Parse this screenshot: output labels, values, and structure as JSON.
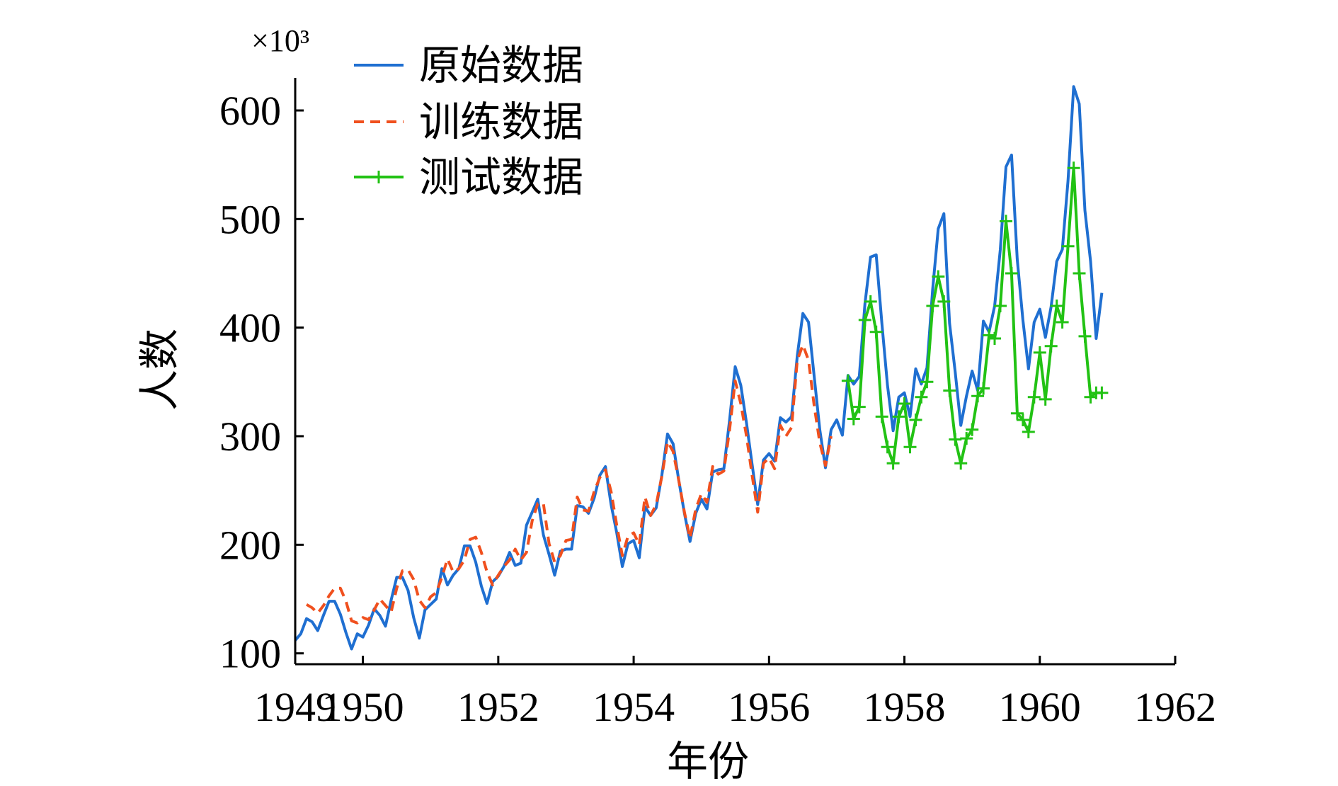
{
  "chart_data": {
    "type": "line",
    "title": "",
    "xlabel": "年份",
    "ylabel": "人数",
    "y_scale_label": "×10³",
    "xlim": [
      1949,
      1962
    ],
    "ylim": [
      90,
      630
    ],
    "xticks": [
      1949,
      1950,
      1952,
      1954,
      1956,
      1958,
      1960,
      1962
    ],
    "xtick_labels": [
      "1949",
      "1950",
      "1952",
      "1954",
      "1956",
      "1958",
      "1960",
      "1962"
    ],
    "yticks": [
      100,
      200,
      300,
      400,
      500,
      600
    ],
    "ytick_labels": [
      "100",
      "200",
      "300",
      "400",
      "500",
      "600"
    ],
    "grid": false,
    "legend_position": "top-left",
    "series": [
      {
        "name": "原始数据",
        "color": "#1f6fd1",
        "style": "solid",
        "marker": "none",
        "x": [
          1949.0,
          1949.083,
          1949.167,
          1949.25,
          1949.333,
          1949.417,
          1949.5,
          1949.583,
          1949.667,
          1949.75,
          1949.833,
          1949.917,
          1950.0,
          1950.083,
          1950.167,
          1950.25,
          1950.333,
          1950.417,
          1950.5,
          1950.583,
          1950.667,
          1950.75,
          1950.833,
          1950.917,
          1951.0,
          1951.083,
          1951.167,
          1951.25,
          1951.333,
          1951.417,
          1951.5,
          1951.583,
          1951.667,
          1951.75,
          1951.833,
          1951.917,
          1952.0,
          1952.083,
          1952.167,
          1952.25,
          1952.333,
          1952.417,
          1952.5,
          1952.583,
          1952.667,
          1952.75,
          1952.833,
          1952.917,
          1953.0,
          1953.083,
          1953.167,
          1953.25,
          1953.333,
          1953.417,
          1953.5,
          1953.583,
          1953.667,
          1953.75,
          1953.833,
          1953.917,
          1954.0,
          1954.083,
          1954.167,
          1954.25,
          1954.333,
          1954.417,
          1954.5,
          1954.583,
          1954.667,
          1954.75,
          1954.833,
          1954.917,
          1955.0,
          1955.083,
          1955.167,
          1955.25,
          1955.333,
          1955.417,
          1955.5,
          1955.583,
          1955.667,
          1955.75,
          1955.833,
          1955.917,
          1956.0,
          1956.083,
          1956.167,
          1956.25,
          1956.333,
          1956.417,
          1956.5,
          1956.583,
          1956.667,
          1956.75,
          1956.833,
          1956.917,
          1957.0,
          1957.083,
          1957.167,
          1957.25,
          1957.333,
          1957.417,
          1957.5,
          1957.583,
          1957.667,
          1957.75,
          1957.833,
          1957.917,
          1958.0,
          1958.083,
          1958.167,
          1958.25,
          1958.333,
          1958.417,
          1958.5,
          1958.583,
          1958.667,
          1958.75,
          1958.833,
          1958.917,
          1959.0,
          1959.083,
          1959.167,
          1959.25,
          1959.333,
          1959.417,
          1959.5,
          1959.583,
          1959.667,
          1959.75,
          1959.833,
          1959.917,
          1960.0,
          1960.083,
          1960.167,
          1960.25,
          1960.333,
          1960.417,
          1960.5,
          1960.583,
          1960.667,
          1960.75,
          1960.833,
          1960.917
        ],
        "y": [
          112,
          118,
          132,
          129,
          121,
          135,
          148,
          148,
          136,
          119,
          104,
          118,
          115,
          126,
          141,
          135,
          125,
          149,
          170,
          170,
          158,
          133,
          114,
          140,
          145,
          150,
          178,
          163,
          172,
          178,
          199,
          199,
          184,
          162,
          146,
          166,
          171,
          180,
          193,
          181,
          183,
          218,
          230,
          242,
          209,
          191,
          172,
          194,
          196,
          196,
          236,
          235,
          229,
          243,
          264,
          272,
          237,
          211,
          180,
          201,
          204,
          188,
          235,
          227,
          234,
          264,
          302,
          293,
          259,
          229,
          203,
          229,
          242,
          233,
          267,
          269,
          270,
          315,
          364,
          347,
          312,
          274,
          237,
          278,
          284,
          277,
          317,
          313,
          318,
          374,
          413,
          405,
          355,
          306,
          271,
          306,
          315,
          301,
          356,
          348,
          355,
          422,
          465,
          467,
          404,
          347,
          305,
          336,
          340,
          318,
          362,
          348,
          363,
          435,
          491,
          505,
          404,
          359,
          310,
          337,
          360,
          342,
          406,
          396,
          420,
          472,
          548,
          559,
          463,
          407,
          362,
          405,
          417,
          391,
          419,
          461,
          472,
          535,
          622,
          606,
          508,
          461,
          390,
          432
        ]
      },
      {
        "name": "训练数据",
        "color": "#f0501e",
        "style": "dashed",
        "marker": "none",
        "x": [
          1949.167,
          1949.25,
          1949.333,
          1949.417,
          1949.5,
          1949.583,
          1949.667,
          1949.75,
          1949.833,
          1949.917,
          1950.0,
          1950.083,
          1950.167,
          1950.25,
          1950.333,
          1950.417,
          1950.5,
          1950.583,
          1950.667,
          1950.75,
          1950.833,
          1950.917,
          1951.0,
          1951.083,
          1951.167,
          1951.25,
          1951.333,
          1951.417,
          1951.5,
          1951.583,
          1951.667,
          1951.75,
          1951.833,
          1951.917,
          1952.0,
          1952.083,
          1952.167,
          1952.25,
          1952.333,
          1952.417,
          1952.5,
          1952.583,
          1952.667,
          1952.75,
          1952.833,
          1952.917,
          1953.0,
          1953.083,
          1953.167,
          1953.25,
          1953.333,
          1953.417,
          1953.5,
          1953.583,
          1953.667,
          1953.75,
          1953.833,
          1953.917,
          1954.0,
          1954.083,
          1954.167,
          1954.25,
          1954.333,
          1954.417,
          1954.5,
          1954.583,
          1954.667,
          1954.75,
          1954.833,
          1954.917,
          1955.0,
          1955.083,
          1955.167,
          1955.25,
          1955.333,
          1955.417,
          1955.5,
          1955.583,
          1955.667,
          1955.75,
          1955.833,
          1955.917,
          1956.0,
          1956.083,
          1956.167,
          1956.25,
          1956.333,
          1956.417,
          1956.5,
          1956.583,
          1956.667,
          1956.75,
          1956.833,
          1956.917
        ],
        "y": [
          145,
          142,
          137,
          144,
          153,
          160,
          160,
          148,
          130,
          128,
          133,
          131,
          140,
          150,
          144,
          138,
          160,
          176,
          177,
          168,
          149,
          142,
          152,
          156,
          170,
          187,
          175,
          178,
          186,
          205,
          207,
          193,
          175,
          163,
          172,
          180,
          186,
          196,
          186,
          193,
          222,
          238,
          238,
          201,
          184,
          190,
          204,
          205,
          244,
          232,
          231,
          249,
          262,
          269,
          249,
          218,
          190,
          208,
          211,
          200,
          244,
          227,
          237,
          263,
          295,
          286,
          259,
          230,
          206,
          233,
          247,
          239,
          272,
          265,
          268,
          306,
          351,
          330,
          300,
          264,
          230,
          275,
          280,
          270,
          310,
          300,
          308,
          370,
          384,
          370,
          328,
          294,
          273,
          300
        ]
      },
      {
        "name": "测试数据",
        "color": "#22c214",
        "style": "solid",
        "marker": "plus",
        "x": [
          1957.167,
          1957.25,
          1957.333,
          1957.417,
          1957.5,
          1957.583,
          1957.667,
          1957.75,
          1957.833,
          1957.917,
          1958.0,
          1958.083,
          1958.167,
          1958.25,
          1958.333,
          1958.417,
          1958.5,
          1958.583,
          1958.667,
          1958.75,
          1958.833,
          1958.917,
          1959.0,
          1959.083,
          1959.167,
          1959.25,
          1959.333,
          1959.417,
          1959.5,
          1959.583,
          1959.667,
          1959.75,
          1959.833,
          1959.917,
          1960.0,
          1960.083,
          1960.167,
          1960.25,
          1960.333,
          1960.417,
          1960.5,
          1960.583,
          1960.667,
          1960.75,
          1960.833,
          1960.917
        ],
        "y": [
          351,
          316,
          327,
          407,
          424,
          396,
          318,
          290,
          275,
          318,
          330,
          290,
          315,
          336,
          350,
          420,
          447,
          424,
          342,
          297,
          275,
          298,
          306,
          337,
          344,
          393,
          390,
          420,
          498,
          450,
          321,
          315,
          304,
          336,
          377,
          334,
          383,
          420,
          405,
          475,
          547,
          450,
          392,
          336,
          340,
          340
        ]
      }
    ]
  }
}
